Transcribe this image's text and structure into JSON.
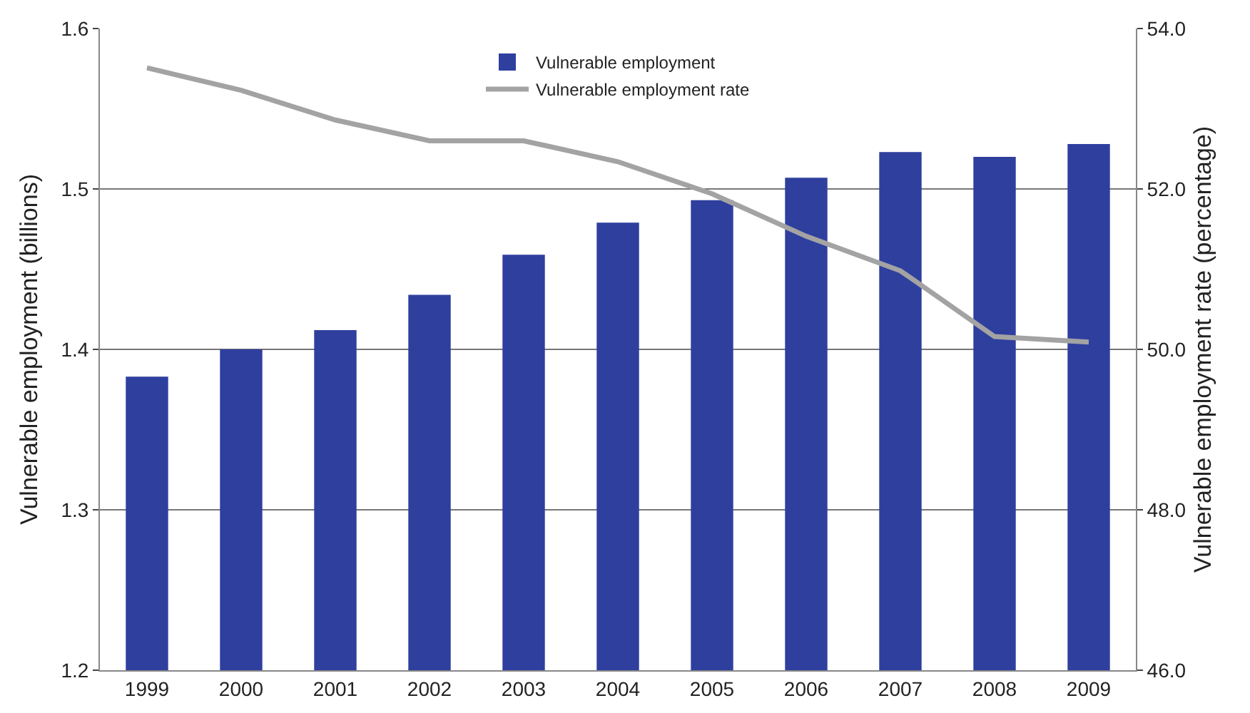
{
  "chart_data": {
    "type": "bar",
    "categories": [
      "1999",
      "2000",
      "2001",
      "2002",
      "2003",
      "2004",
      "2005",
      "2006",
      "2007",
      "2008",
      "2009"
    ],
    "ylabel": "Vulnerable employment (billions)",
    "y2label": "Vulnerable employment rate (percentage)",
    "series": [
      {
        "name": "Vulnerable employment",
        "color": "#2f3f9e",
        "values": [
          1.383,
          1.4,
          1.412,
          1.434,
          1.459,
          1.479,
          1.493,
          1.507,
          1.523,
          1.52,
          1.528
        ]
      },
      {
        "name": "Vulnerable employment rate",
        "type": "line",
        "axis": "y2",
        "color": "#a3a3a3",
        "values": [
          53.51,
          53.23,
          52.86,
          52.6,
          52.6,
          52.34,
          51.94,
          51.41,
          50.98,
          50.16,
          50.09
        ]
      }
    ],
    "ylim": [
      1.2,
      1.6
    ],
    "yticks": [
      1.2,
      1.3,
      1.4,
      1.5,
      1.6
    ],
    "y2lim": [
      46,
      54
    ],
    "y2ticks": [
      {
        "value": 46,
        "label": "46.0"
      },
      {
        "value": 48,
        "label": "48.0"
      },
      {
        "value": 50,
        "label": "50.0"
      },
      {
        "value": 52,
        "label": "52.0"
      },
      {
        "value": 54,
        "label": "54.0"
      }
    ],
    "grid": "y",
    "legend": "top",
    "marker": "none",
    "line_style": "solid"
  }
}
